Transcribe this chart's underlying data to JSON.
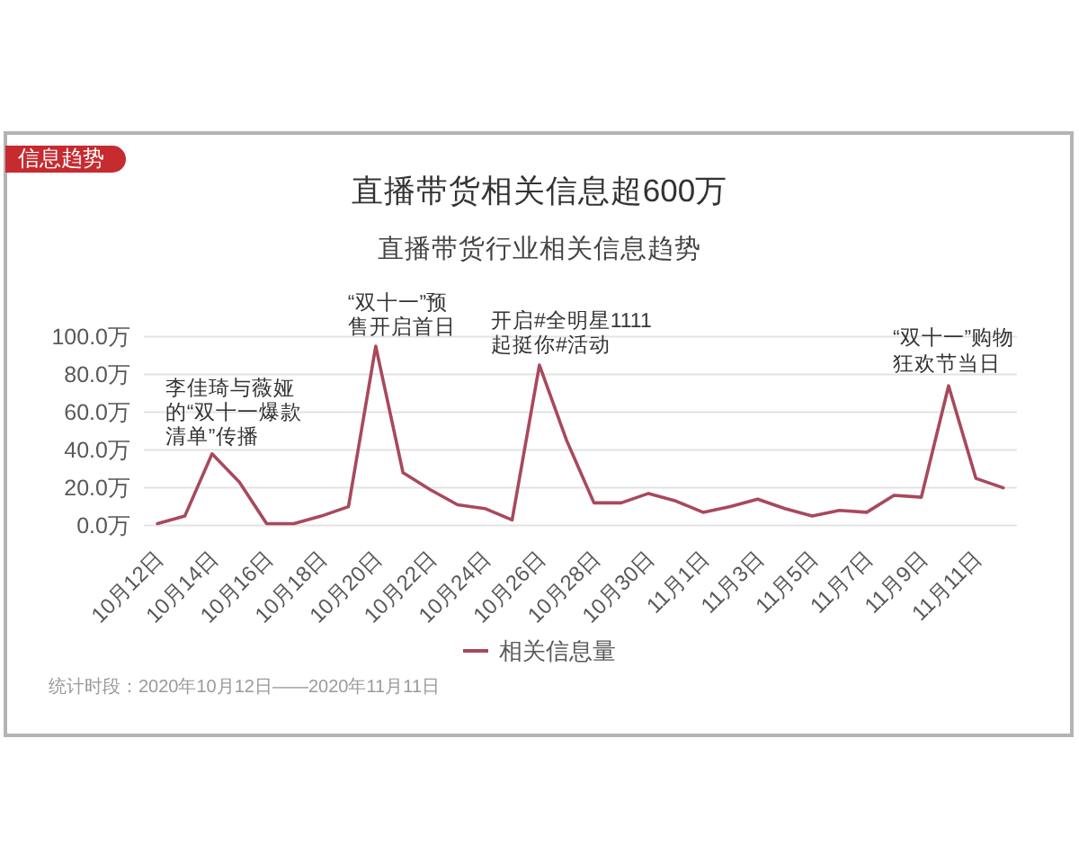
{
  "chart_data": {
    "type": "line",
    "title": "直播带货相关信息超600万",
    "subtitle": "直播带货行业相关信息趋势",
    "categories": [
      "10月12日",
      null,
      "10月14日",
      null,
      "10月16日",
      null,
      "10月18日",
      null,
      "10月20日",
      null,
      "10月22日",
      null,
      "10月24日",
      null,
      "10月26日",
      null,
      "10月28日",
      null,
      "10月30日",
      null,
      "11月1日",
      null,
      "11月3日",
      null,
      "11月5日",
      null,
      "11月7日",
      null,
      "11月9日",
      null,
      "11月11日",
      null
    ],
    "series": [
      {
        "name": "相关信息量",
        "color": "#a8495c",
        "values": [
          1,
          5,
          38,
          23,
          1,
          1,
          5,
          10,
          95,
          28,
          19,
          11,
          9,
          3,
          85,
          45,
          12,
          12,
          17,
          13,
          7,
          10,
          14,
          9,
          5,
          8,
          7,
          16,
          15,
          74,
          25,
          20
        ]
      }
    ],
    "ylim": [
      0,
      100
    ],
    "yticks": [
      {
        "value": 0,
        "label": "0.0万"
      },
      {
        "value": 20,
        "label": "20.0万"
      },
      {
        "value": 40,
        "label": "40.0万"
      },
      {
        "value": 60,
        "label": "60.0万"
      },
      {
        "value": 80,
        "label": "80.0万"
      },
      {
        "value": 100,
        "label": "100.0万"
      }
    ],
    "grid": "y",
    "legend": "bottom",
    "line_style": "solid",
    "annotations": [
      "信息趋势",
      {
        "text": "李佳琦与薇娅的“双十一爆款清单”传播",
        "x": "10月14日",
        "y": 38
      },
      {
        "text": "“双十一”预售开启首日",
        "x": "10月20日",
        "y": 95
      },
      {
        "text": "开启#全明星1111起挺你#活动",
        "x": "10月26日",
        "y": 85
      },
      "“双十一”购物狂欢节当日",
      "统计时段：2020年10月12日——2020年11月11日"
    ]
  }
}
